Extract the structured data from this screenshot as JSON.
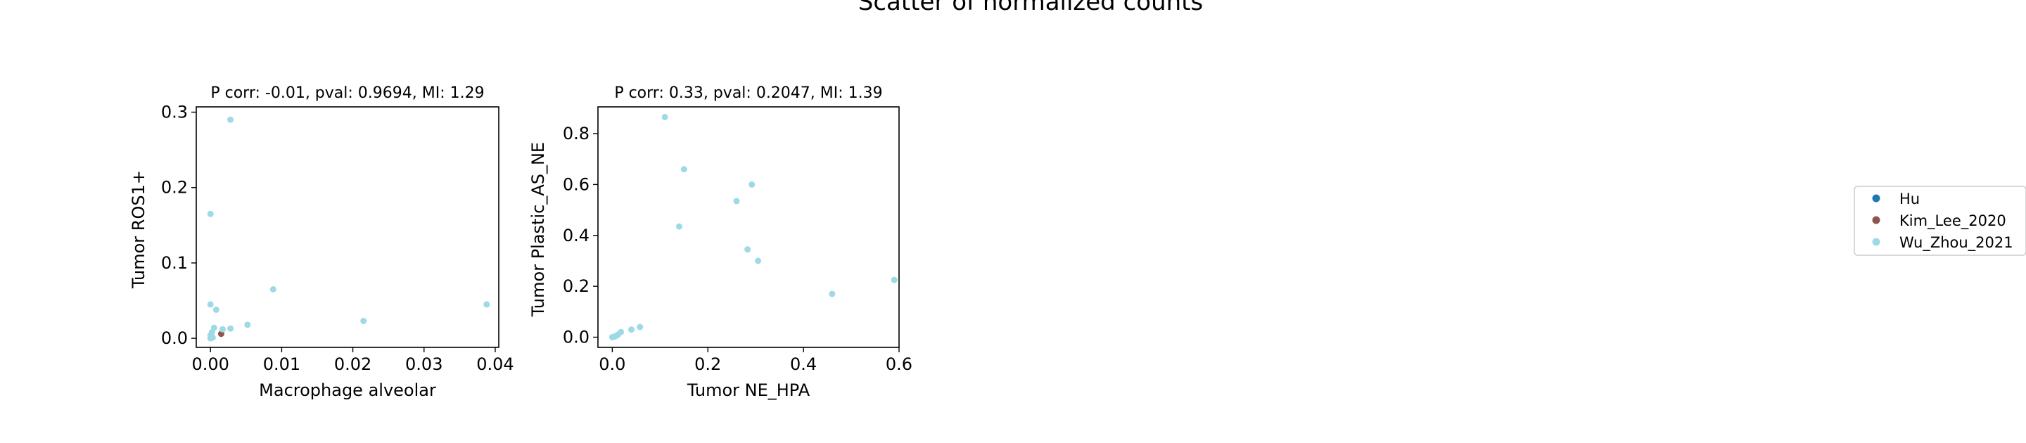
{
  "figure": {
    "suptitle": "Scatter of normalized counts"
  },
  "legend": {
    "placement": "right",
    "entries": [
      {
        "label": "Hu",
        "color": "#1f77b4"
      },
      {
        "label": "Kim_Lee_2020",
        "color": "#8c564b"
      },
      {
        "label": "Wu_Zhou_2021",
        "color": "#9edae5"
      }
    ]
  },
  "chart_data": [
    {
      "type": "scatter",
      "title": "P corr: -0.01, pval: 0.9694, MI: 1.29",
      "xlabel": "Macrophage alveolar",
      "ylabel": "Tumor ROS1+",
      "xlim": [
        -0.002,
        0.0405
      ],
      "ylim": [
        -0.012,
        0.307
      ],
      "xticks": [
        0.0,
        0.01,
        0.02,
        0.03,
        0.04
      ],
      "xtick_labels": [
        "0.00",
        "0.01",
        "0.02",
        "0.03",
        "0.04"
      ],
      "yticks": [
        0.0,
        0.1,
        0.2,
        0.3
      ],
      "ytick_labels": [
        "0.0",
        "0.1",
        "0.2",
        "0.3"
      ],
      "grid": false,
      "series": [
        {
          "name": "Kim_Lee_2020",
          "color": "#8c564b",
          "x": [
            0.0015
          ],
          "y": [
            0.006
          ]
        },
        {
          "name": "Wu_Zhou_2021",
          "color": "#9edae5",
          "x": [
            0.0028,
            0.0,
            0.0088,
            0.0,
            0.0008,
            0.0215,
            0.0388,
            0.0052,
            0.0028,
            0.0017,
            0.0005,
            0.0002,
            0.0,
            0.0001,
            0.0003,
            0.0
          ],
          "y": [
            0.29,
            0.165,
            0.065,
            0.045,
            0.038,
            0.023,
            0.045,
            0.018,
            0.013,
            0.012,
            0.014,
            0.008,
            0.004,
            0.002,
            0.001,
            0.0
          ]
        }
      ]
    },
    {
      "type": "scatter",
      "title": "P corr: 0.33, pval: 0.2047, MI: 1.39",
      "xlabel": "Tumor NE_HPA",
      "ylabel": "Tumor Plastic_AS_NE",
      "xlim": [
        -0.03,
        0.6
      ],
      "ylim": [
        -0.04,
        0.905
      ],
      "xticks": [
        0.0,
        0.2,
        0.4,
        0.6
      ],
      "xtick_labels": [
        "0.0",
        "0.2",
        "0.4",
        "0.6"
      ],
      "yticks": [
        0.0,
        0.2,
        0.4,
        0.6,
        0.8
      ],
      "ytick_labels": [
        "0.0",
        "0.2",
        "0.4",
        "0.6",
        "0.8"
      ],
      "grid": false,
      "series": [
        {
          "name": "Wu_Zhou_2021",
          "color": "#9edae5",
          "x": [
            0.11,
            0.15,
            0.292,
            0.26,
            0.14,
            0.283,
            0.305,
            0.46,
            0.59,
            0.058,
            0.04,
            0.018,
            0.012,
            0.008,
            0.004,
            0.0
          ],
          "y": [
            0.865,
            0.66,
            0.6,
            0.535,
            0.435,
            0.345,
            0.3,
            0.17,
            0.225,
            0.04,
            0.03,
            0.02,
            0.01,
            0.005,
            0.002,
            0.0
          ]
        }
      ]
    }
  ]
}
